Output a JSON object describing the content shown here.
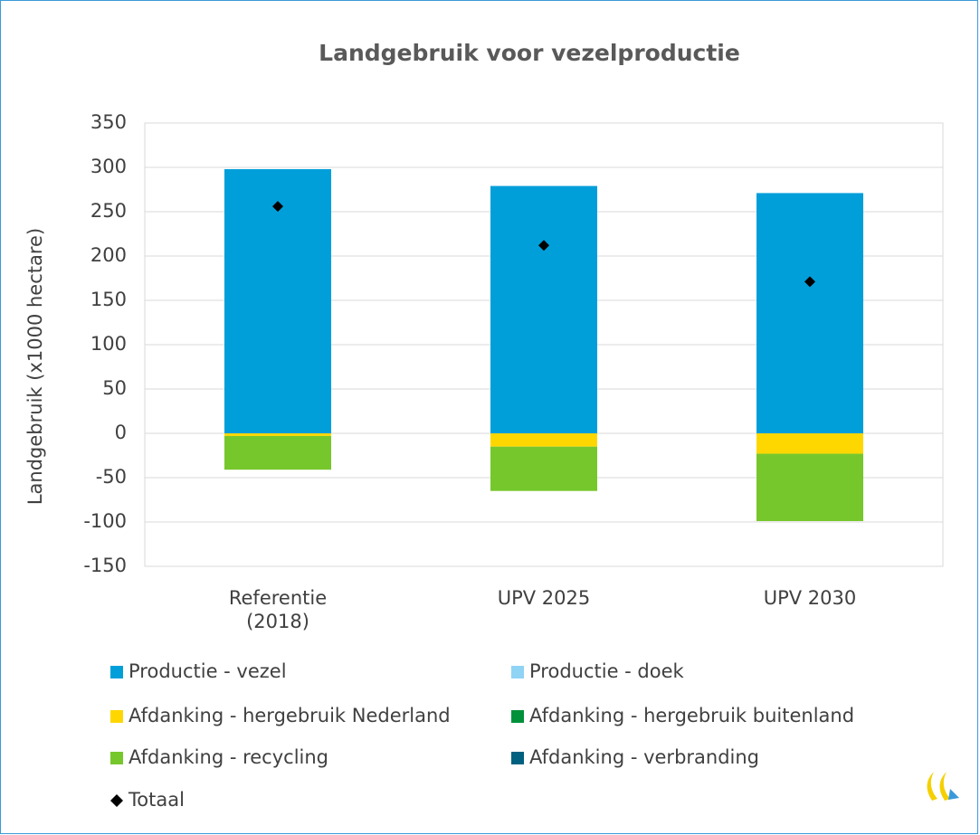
{
  "chart_data": {
    "type": "bar",
    "stacked": true,
    "title": "Landgebruik voor vezelproductie",
    "ylabel": "Landgebruik (x1000 hectare)",
    "categories": [
      "Referentie (2018)",
      "UPV 2025",
      "UPV 2030"
    ],
    "ylim": [
      -150,
      350
    ],
    "yticks": [
      -150,
      -100,
      -50,
      0,
      50,
      100,
      150,
      200,
      250,
      300,
      350
    ],
    "grid": true,
    "series": [
      {
        "name": "Productie - vezel",
        "color": "#009fda",
        "values": [
          298,
          279,
          271
        ]
      },
      {
        "name": "Productie - doek",
        "color": "#8fd3f5",
        "values": [
          0,
          0,
          0
        ]
      },
      {
        "name": "Afdanking - hergebruik Nederland",
        "color": "#ffd700",
        "values": [
          -3,
          -15,
          -23
        ]
      },
      {
        "name": "Afdanking - hergebruik buitenland",
        "color": "#00913a",
        "values": [
          0,
          0,
          0
        ]
      },
      {
        "name": "Afdanking - recycling",
        "color": "#76c72c",
        "values": [
          -38,
          -50,
          -76
        ]
      },
      {
        "name": "Afdanking - verbranding",
        "color": "#00607f",
        "values": [
          0,
          0,
          0
        ]
      },
      {
        "name": "Totaal",
        "type": "scatter",
        "marker": "diamond",
        "color": "#000000",
        "values": [
          256,
          212,
          171
        ]
      }
    ]
  }
}
